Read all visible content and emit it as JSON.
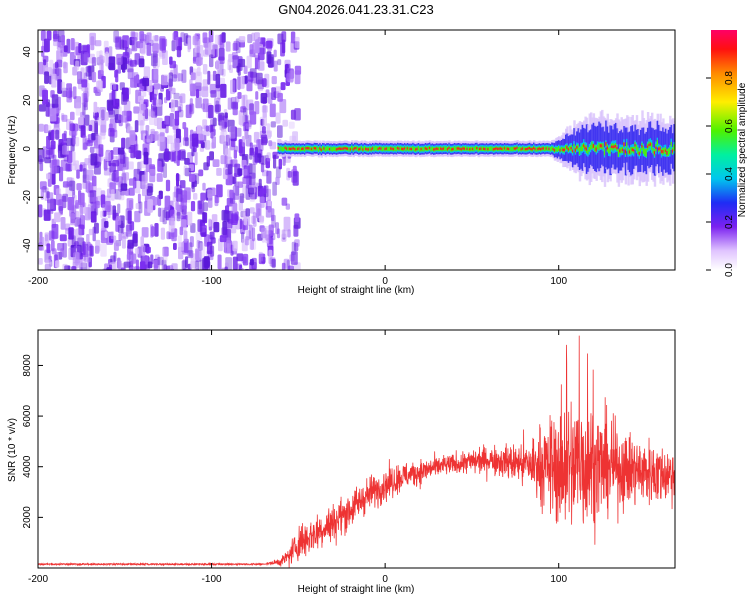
{
  "figure_title": "GN04.2026.041.23.31.C23",
  "colors": {
    "snr_line": "#ee3333",
    "axis": "#000000",
    "spec_noise": "#6a1ee6"
  },
  "chart_data": [
    {
      "type": "heatmap",
      "name": "spectrogram",
      "xlabel": "Height of straight line (km)",
      "ylabel": "Frequency (Hz)",
      "xlim": [
        -200,
        167
      ],
      "ylim": [
        -50,
        49
      ],
      "xticks": [
        -200,
        -100,
        0,
        100
      ],
      "yticks": [
        -40,
        -20,
        0,
        20,
        40
      ],
      "xtick_labels": [
        "-200",
        "-100",
        "0",
        "100"
      ],
      "ytick_labels": [
        "-40",
        "-20",
        "0",
        "20",
        "40"
      ],
      "noise_region_km": [
        -200,
        -52
      ],
      "signal_start_km": -62,
      "signal_center_hz": 0,
      "signal_bandwidth_hz": 6,
      "turbulent_region_km": [
        95,
        167
      ],
      "colorbar": {
        "label": "Normalized spectral amplitude",
        "range": [
          0,
          1
        ],
        "ticks": [
          0,
          0.2,
          0.4,
          0.6,
          0.8
        ],
        "tick_labels": [
          "0.0",
          "0.2",
          "0.4",
          "0.6",
          "0.8"
        ]
      }
    },
    {
      "type": "line",
      "name": "snr",
      "xlabel": "Height of straight line (km)",
      "ylabel": "SNR (10 * v/v)",
      "xlim": [
        -200,
        167
      ],
      "ylim": [
        0,
        9400
      ],
      "xticks": [
        -200,
        -100,
        0,
        100
      ],
      "yticks": [
        2000,
        4000,
        6000,
        8000
      ],
      "xtick_labels": [
        "-200",
        "-100",
        "0",
        "100"
      ],
      "ytick_labels": [
        "2000",
        "4000",
        "6000",
        "8000"
      ],
      "series": [
        {
          "name": "SNR",
          "x": [
            -200,
            -150,
            -100,
            -70,
            -60,
            -55,
            -50,
            -40,
            -30,
            -20,
            -10,
            0,
            10,
            20,
            30,
            40,
            50,
            60,
            70,
            80,
            90,
            100,
            105,
            110,
            115,
            120,
            130,
            140,
            150,
            160,
            167
          ],
          "y": [
            150,
            150,
            150,
            150,
            250,
            500,
            1000,
            1400,
            1800,
            2300,
            2900,
            3300,
            3600,
            3800,
            4000,
            4100,
            4200,
            4300,
            4200,
            4100,
            4050,
            4000,
            4000,
            4100,
            4200,
            4100,
            4000,
            3900,
            3800,
            3700,
            3700
          ],
          "noise_envelope": [
            0,
            0,
            0,
            0,
            200,
            500,
            900,
            900,
            900,
            900,
            800,
            800,
            700,
            600,
            500,
            500,
            600,
            700,
            800,
            1200,
            1800,
            2800,
            3200,
            3600,
            3400,
            3000,
            2200,
            1800,
            1600,
            1400,
            1400
          ],
          "max_observed": 9300
        }
      ]
    }
  ]
}
